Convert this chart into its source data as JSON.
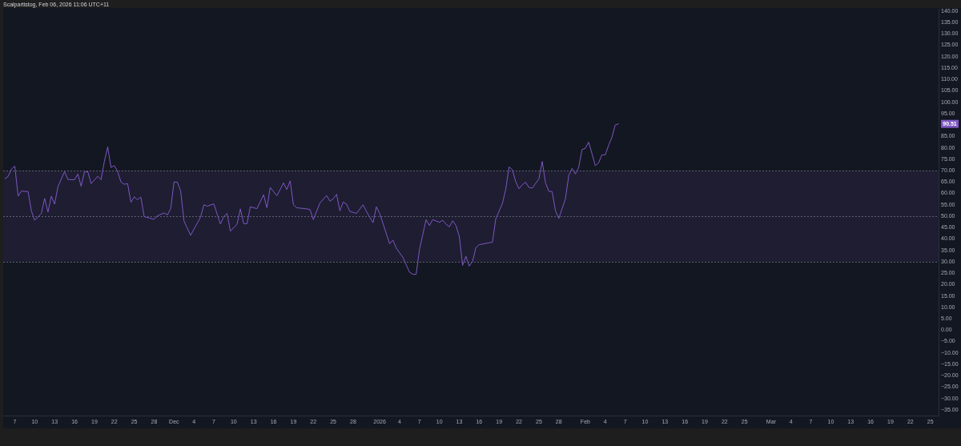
{
  "chart_data": {
    "type": "line",
    "color": "#7e57c2",
    "annotations": [
      "Scalpartistog, Feb 06, 2026 11:06 UTC+11",
      {
        "text": "90.51",
        "y": 90.51
      }
    ],
    "x": [
      "2025-11-05T12:00",
      "2025-11-06T00:00",
      "2025-11-06T12:00",
      "2025-11-07T00:00",
      "2025-11-07T12:00",
      "2025-11-08T00:00",
      "2025-11-09T00:00",
      "2025-11-09T12:00",
      "2025-11-10T00:00",
      "2025-11-11T00:00",
      "2025-11-11T12:00",
      "2025-11-12T00:00",
      "2025-11-12T12:00",
      "2025-11-13T00:00",
      "2025-11-13T12:00",
      "2025-11-14T12:00",
      "2025-11-15T00:00",
      "2025-11-16T00:00",
      "2025-11-16T12:00",
      "2025-11-17T00:00",
      "2025-11-17T12:00",
      "2025-11-18T00:00",
      "2025-11-18T12:00",
      "2025-11-19T12:00",
      "2025-11-20T00:00",
      "2025-11-20T12:00",
      "2025-11-21T00:00",
      "2025-11-21T12:00",
      "2025-11-22T00:00",
      "2025-11-22T12:00",
      "2025-11-23T00:00",
      "2025-11-23T12:00",
      "2025-11-24T00:00",
      "2025-11-24T12:00",
      "2025-11-25T00:00",
      "2025-11-25T12:00",
      "2025-11-26T00:00",
      "2025-11-26T12:00",
      "2025-11-28T00:00",
      "2025-11-28T12:00",
      "2025-11-29T12:00",
      "2025-11-30T00:00",
      "2025-11-30T12:00",
      "2025-12-01T00:00",
      "2025-12-01T12:00",
      "2025-12-02T00:00",
      "2025-12-02T12:00",
      "2025-12-03T12:00",
      "2025-12-05T00:00",
      "2025-12-05T12:00",
      "2025-12-06T00:00",
      "2025-12-07T00:00",
      "2025-12-08T00:00",
      "2025-12-08T12:00",
      "2025-12-09T00:00",
      "2025-12-09T12:00",
      "2025-12-10T12:00",
      "2025-12-11T00:00",
      "2025-12-11T12:00",
      "2025-12-12T00:00",
      "2025-12-12T12:00",
      "2025-12-13T12:00",
      "2025-12-14T12:00",
      "2025-12-15T00:00",
      "2025-12-15T12:00",
      "2025-12-16T12:00",
      "2025-12-17T00:00",
      "2025-12-17T12:00",
      "2025-12-18T00:00",
      "2025-12-18T12:00",
      "2025-12-19T00:00",
      "2025-12-19T12:00",
      "2025-12-21T00:00",
      "2025-12-21T12:00",
      "2025-12-22T00:00",
      "2025-12-23T00:00",
      "2025-12-24T00:00",
      "2025-12-24T12:00",
      "2025-12-25T00:00",
      "2025-12-25T12:00",
      "2025-12-26T00:00",
      "2025-12-26T12:00",
      "2025-12-27T00:00",
      "2025-12-27T12:00",
      "2025-12-28T12:00",
      "2025-12-29T12:00",
      "2025-12-30T00:00",
      "2025-12-31T00:00",
      "2025-12-31T12:00",
      "2026-01-01T00:00",
      "2026-01-02T12:00",
      "2026-01-03T00:00",
      "2026-01-03T12:00",
      "2026-01-04T12:00",
      "2026-01-05T12:00",
      "2026-01-06T00:00",
      "2026-01-06T12:00",
      "2026-01-07T00:00",
      "2026-01-08T00:00",
      "2026-01-08T12:00",
      "2026-01-09T00:00",
      "2026-01-10T00:00",
      "2026-01-10T12:00",
      "2026-01-11T00:00",
      "2026-01-11T12:00",
      "2026-01-12T00:00",
      "2026-01-12T12:00",
      "2026-01-13T00:00",
      "2026-01-13T12:00",
      "2026-01-14T00:00",
      "2026-01-14T12:00",
      "2026-01-15T00:00",
      "2026-01-15T12:00",
      "2026-01-16T00:00",
      "2026-01-18T00:00",
      "2026-01-18T12:00",
      "2026-01-19T12:00",
      "2026-01-20T00:00",
      "2026-01-20T12:00",
      "2026-01-21T00:00",
      "2026-01-21T12:00",
      "2026-01-22T00:00",
      "2026-01-22T12:00",
      "2026-01-23T00:00",
      "2026-01-23T12:00",
      "2026-01-24T00:00",
      "2026-01-25T00:00",
      "2026-01-25T12:00",
      "2026-01-26T00:00",
      "2026-01-26T12:00",
      "2026-01-27T00:00",
      "2026-01-27T12:00",
      "2026-01-28T00:00",
      "2026-01-29T00:00",
      "2026-01-29T12:00",
      "2026-01-30T00:00",
      "2026-01-30T12:00",
      "2026-01-31T00:00",
      "2026-01-31T12:00",
      "2026-02-01T00:00",
      "2026-02-01T12:00",
      "2026-02-02T00:00",
      "2026-02-02T12:00",
      "2026-02-03T00:00",
      "2026-02-03T12:00",
      "2026-02-04T00:00",
      "2026-02-04T12:00",
      "2026-02-05T00:00",
      "2026-02-05T12:00",
      "2026-02-06T00:00"
    ],
    "values": [
      66.4,
      67.5,
      70.7,
      71.9,
      58.8,
      61.0,
      60.8,
      52.3,
      48.2,
      51.2,
      57.8,
      51.8,
      58.8,
      55.3,
      62.9,
      69.6,
      66.1,
      66.0,
      68.5,
      63.1,
      69.4,
      69.5,
      64.3,
      67.5,
      66.0,
      74.0,
      80.4,
      71.4,
      72.2,
      69.6,
      65.0,
      64.0,
      64.3,
      56.1,
      58.5,
      57.2,
      58.4,
      49.8,
      48.6,
      50.2,
      51.4,
      50.6,
      53.3,
      65.0,
      64.9,
      61.1,
      47.9,
      41.6,
      49.6,
      55.0,
      54.4,
      55.4,
      46.5,
      49.8,
      51.2,
      43.4,
      46.5,
      53.2,
      46.7,
      46.7,
      54.1,
      53.3,
      59.4,
      53.7,
      62.6,
      59.0,
      61.7,
      64.6,
      61.7,
      65.5,
      55.0,
      53.7,
      53.2,
      52.9,
      48.5,
      55.8,
      59.1,
      56.6,
      57.6,
      59.6,
      52.3,
      56.2,
      55.3,
      52.1,
      51.2,
      55.0,
      52.1,
      47.1,
      54.1,
      51.2,
      37.9,
      39.5,
      36.0,
      31.9,
      25.4,
      24.5,
      24.5,
      35.4,
      48.5,
      45.9,
      48.5,
      47.3,
      48.2,
      46.5,
      45.3,
      48.0,
      45.9,
      41.2,
      28.4,
      32.4,
      28.1,
      30.1,
      36.2,
      37.5,
      38.6,
      48.8,
      55.6,
      61.7,
      71.6,
      70.4,
      65.2,
      62.0,
      63.8,
      64.9,
      62.6,
      62.3,
      66.4,
      74.0,
      64.6,
      60.9,
      60.8,
      52.3,
      49.0,
      57.6,
      67.8,
      71.0,
      68.5,
      71.4,
      79.2,
      79.8,
      82.5,
      77.5,
      72.2,
      73.4,
      76.9,
      76.9,
      81.0,
      84.5,
      90.0,
      90.51
    ],
    "xlim": [
      "2025-11-05T06:00",
      "2026-03-26T06:00"
    ],
    "xticks": [
      {
        "value": "2025-11-07",
        "label": "7"
      },
      {
        "value": "2025-11-10",
        "label": "10"
      },
      {
        "value": "2025-11-13",
        "label": "13"
      },
      {
        "value": "2025-11-16",
        "label": "16"
      },
      {
        "value": "2025-11-19",
        "label": "19"
      },
      {
        "value": "2025-11-22",
        "label": "22"
      },
      {
        "value": "2025-11-25",
        "label": "25"
      },
      {
        "value": "2025-11-28",
        "label": "28"
      },
      {
        "value": "2025-12-01",
        "label": "Dec"
      },
      {
        "value": "2025-12-04",
        "label": "4"
      },
      {
        "value": "2025-12-07",
        "label": "7"
      },
      {
        "value": "2025-12-10",
        "label": "10"
      },
      {
        "value": "2025-12-13",
        "label": "13"
      },
      {
        "value": "2025-12-16",
        "label": "16"
      },
      {
        "value": "2025-12-19",
        "label": "19"
      },
      {
        "value": "2025-12-22",
        "label": "22"
      },
      {
        "value": "2025-12-25",
        "label": "25"
      },
      {
        "value": "2025-12-28",
        "label": "28"
      },
      {
        "value": "2026-01-01",
        "label": "2026"
      },
      {
        "value": "2026-01-04",
        "label": "4"
      },
      {
        "value": "2026-01-07",
        "label": "7"
      },
      {
        "value": "2026-01-10",
        "label": "10"
      },
      {
        "value": "2026-01-13",
        "label": "13"
      },
      {
        "value": "2026-01-16",
        "label": "16"
      },
      {
        "value": "2026-01-19",
        "label": "19"
      },
      {
        "value": "2026-01-22",
        "label": "22"
      },
      {
        "value": "2026-01-25",
        "label": "25"
      },
      {
        "value": "2026-01-28",
        "label": "28"
      },
      {
        "value": "2026-02-01",
        "label": "Feb"
      },
      {
        "value": "2026-02-04",
        "label": "4"
      },
      {
        "value": "2026-02-07",
        "label": "7"
      },
      {
        "value": "2026-02-10",
        "label": "10"
      },
      {
        "value": "2026-02-13",
        "label": "13"
      },
      {
        "value": "2026-02-16",
        "label": "16"
      },
      {
        "value": "2026-02-19",
        "label": "19"
      },
      {
        "value": "2026-02-22",
        "label": "22"
      },
      {
        "value": "2026-02-25",
        "label": "25"
      },
      {
        "value": "2026-03-01",
        "label": "Mar"
      },
      {
        "value": "2026-03-04",
        "label": "4"
      },
      {
        "value": "2026-03-07",
        "label": "7"
      },
      {
        "value": "2026-03-10",
        "label": "10"
      },
      {
        "value": "2026-03-13",
        "label": "13"
      },
      {
        "value": "2026-03-16",
        "label": "16"
      },
      {
        "value": "2026-03-19",
        "label": "19"
      },
      {
        "value": "2026-03-22",
        "label": "22"
      },
      {
        "value": "2026-03-25",
        "label": "25"
      }
    ],
    "ylim": [
      -37.5,
      141
    ],
    "yticks": [
      {
        "value": 140,
        "label": "140.00"
      },
      {
        "value": 135,
        "label": "135.00"
      },
      {
        "value": 130,
        "label": "130.00"
      },
      {
        "value": 125,
        "label": "125.00"
      },
      {
        "value": 120,
        "label": "120.00"
      },
      {
        "value": 115,
        "label": "115.00"
      },
      {
        "value": 110,
        "label": "110.00"
      },
      {
        "value": 105,
        "label": "105.00"
      },
      {
        "value": 100,
        "label": "100.00"
      },
      {
        "value": 95,
        "label": "95.00"
      },
      {
        "value": 85,
        "label": "85.00"
      },
      {
        "value": 80,
        "label": "80.00"
      },
      {
        "value": 75,
        "label": "75.00"
      },
      {
        "value": 70,
        "label": "70.00"
      },
      {
        "value": 65,
        "label": "65.00"
      },
      {
        "value": 60,
        "label": "60.00"
      },
      {
        "value": 55,
        "label": "55.00"
      },
      {
        "value": 50,
        "label": "50.00"
      },
      {
        "value": 45,
        "label": "45.00"
      },
      {
        "value": 40,
        "label": "40.00"
      },
      {
        "value": 35,
        "label": "35.00"
      },
      {
        "value": 30,
        "label": "30.00"
      },
      {
        "value": 25,
        "label": "25.00"
      },
      {
        "value": 20,
        "label": "20.00"
      },
      {
        "value": 15,
        "label": "15.00"
      },
      {
        "value": 10,
        "label": "10.00"
      },
      {
        "value": 5,
        "label": "5.00"
      },
      {
        "value": 0,
        "label": "0.00"
      },
      {
        "value": -5,
        "label": "−5.00"
      },
      {
        "value": -10,
        "label": "−10.00"
      },
      {
        "value": -15,
        "label": "−15.00"
      },
      {
        "value": -20,
        "label": "−20.00"
      },
      {
        "value": -25,
        "label": "−25.00"
      },
      {
        "value": -30,
        "label": "−30.00"
      },
      {
        "value": -35,
        "label": "−35.00"
      }
    ],
    "bands": [
      {
        "axis": "y",
        "from": 30,
        "to": 70,
        "color": "#1e1d32"
      }
    ],
    "ref_lines": [
      {
        "axis": "y",
        "value": 70,
        "color": "#5d606b",
        "line_style": "dashed"
      },
      {
        "axis": "y",
        "value": 50,
        "color": "#5d606b",
        "line_style": "dashed"
      },
      {
        "axis": "y",
        "value": 30,
        "color": "#5d606b",
        "line_style": "dashed"
      }
    ]
  }
}
